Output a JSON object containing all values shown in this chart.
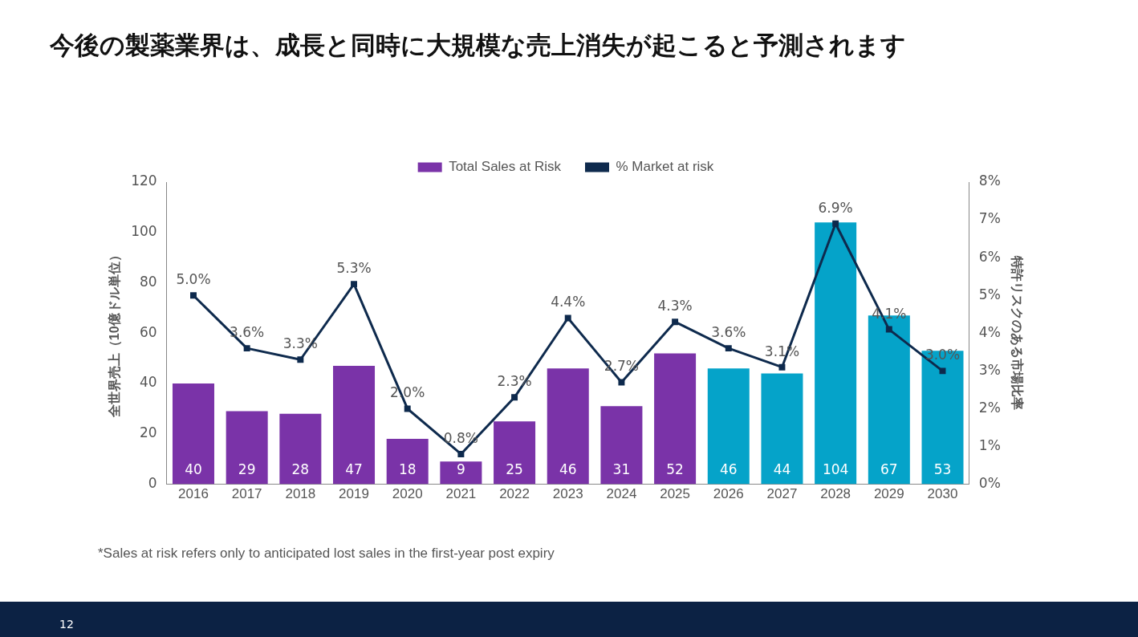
{
  "chart_data": {
    "type": "bar",
    "title": "今後の製薬業界は、成長と同時に大規模な売上消失が起こると予測されます",
    "categories": [
      "2016",
      "2017",
      "2018",
      "2019",
      "2020",
      "2021",
      "2022",
      "2023",
      "2024",
      "2025",
      "2026",
      "2027",
      "2028",
      "2029",
      "2030"
    ],
    "series": [
      {
        "name": "Total Sales at Risk",
        "color": "#7a33a8",
        "colors": [
          "#7a33a8",
          "#7a33a8",
          "#7a33a8",
          "#7a33a8",
          "#7a33a8",
          "#7a33a8",
          "#7a33a8",
          "#7a33a8",
          "#7a33a8",
          "#7a33a8",
          "#05a3c9",
          "#05a3c9",
          "#05a3c9",
          "#05a3c9",
          "#05a3c9"
        ],
        "values": [
          40,
          29,
          28,
          47,
          18,
          9,
          25,
          46,
          31,
          52,
          46,
          44,
          104,
          67,
          53
        ],
        "value_labels": [
          "40",
          "29",
          "28",
          "47",
          "18",
          "9",
          "25",
          "46",
          "31",
          "52",
          "46",
          "44",
          "104",
          "67",
          "53"
        ]
      },
      {
        "name": "% Market at risk",
        "type": "line",
        "axis": "y2",
        "color": "#0e2a4d",
        "values": [
          5.0,
          3.6,
          3.3,
          5.3,
          2.0,
          0.8,
          2.3,
          4.4,
          2.7,
          4.3,
          3.6,
          3.1,
          6.9,
          4.1,
          3.0
        ],
        "value_labels": [
          "5.0%",
          "3.6%",
          "3.3%",
          "5.3%",
          "2.0%",
          "0.8%",
          "2.3%",
          "4.4%",
          "2.7%",
          "4.3%",
          "3.6%",
          "3.1%",
          "6.9%",
          "4.1%",
          "3.0%"
        ]
      }
    ],
    "ylabel": "全世界売上（10億ドル単位）",
    "y2label": "特許リスクのある市場比率",
    "ylim": [
      0,
      120
    ],
    "yticks": [
      0,
      20,
      40,
      60,
      80,
      100,
      120
    ],
    "y2lim": [
      0,
      8
    ],
    "y2ticks": [
      {
        "value": 0,
        "label": "0%"
      },
      {
        "value": 1,
        "label": "1%"
      },
      {
        "value": 2,
        "label": "2%"
      },
      {
        "value": 3,
        "label": "3%"
      },
      {
        "value": 4,
        "label": "4%"
      },
      {
        "value": 5,
        "label": "5%"
      },
      {
        "value": 6,
        "label": "6%"
      },
      {
        "value": 7,
        "label": "7%"
      },
      {
        "value": 8,
        "label": "8%"
      }
    ],
    "legend": "top",
    "grid": false,
    "marker": "square",
    "annotations": [
      "*Sales at risk refers only to anticipated lost sales in the first-year post expiry",
      "12"
    ]
  }
}
